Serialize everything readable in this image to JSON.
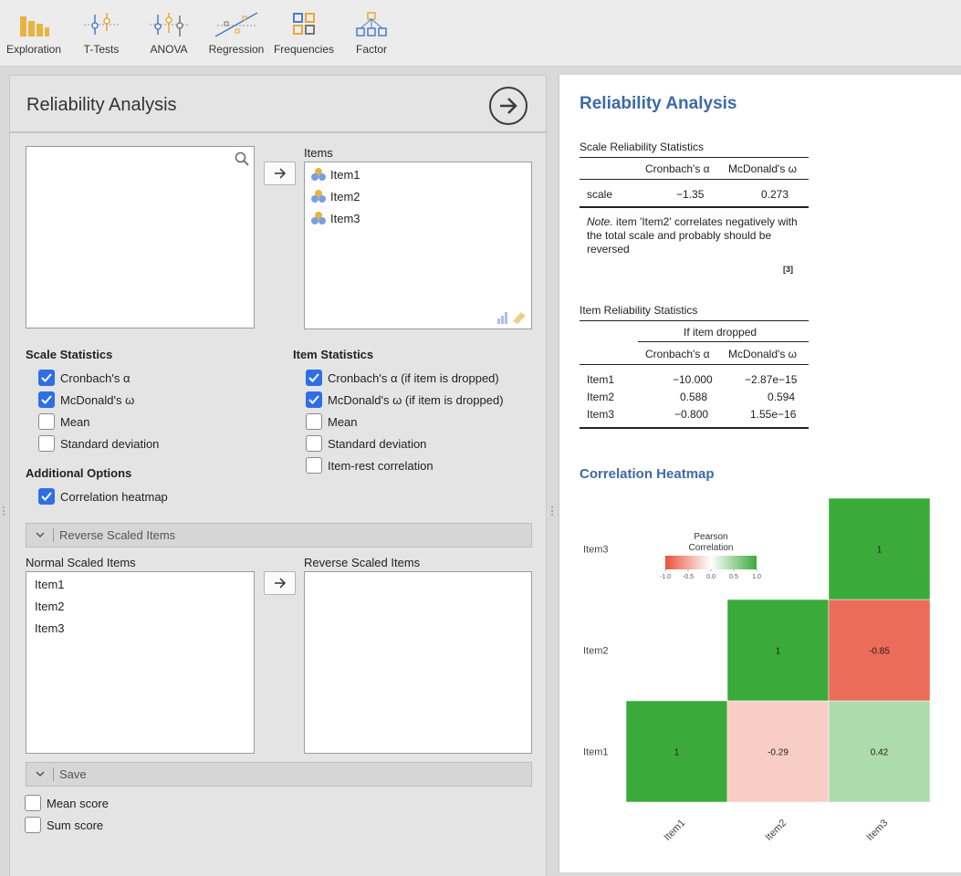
{
  "toolbar": {
    "tools": [
      {
        "label": "Exploration",
        "icon": "exploration-icon"
      },
      {
        "label": "T-Tests",
        "icon": "t-tests-icon"
      },
      {
        "label": "ANOVA",
        "icon": "anova-icon"
      },
      {
        "label": "Regression",
        "icon": "regression-icon"
      },
      {
        "label": "Frequencies",
        "icon": "frequencies-icon"
      },
      {
        "label": "Factor",
        "icon": "factor-icon"
      }
    ]
  },
  "options": {
    "title": "Reliability Analysis",
    "items_label": "Items",
    "items": [
      "Item1",
      "Item2",
      "Item3"
    ],
    "scale_statistics": {
      "heading": "Scale Statistics",
      "checks": [
        {
          "label": "Cronbach's α",
          "checked": true
        },
        {
          "label": "McDonald's ω",
          "checked": true
        },
        {
          "label": "Mean",
          "checked": false
        },
        {
          "label": "Standard deviation",
          "checked": false
        }
      ]
    },
    "item_statistics": {
      "heading": "Item Statistics",
      "checks": [
        {
          "label": "Cronbach's α (if item is dropped)",
          "checked": true
        },
        {
          "label": "McDonald's ω (if item is dropped)",
          "checked": true
        },
        {
          "label": "Mean",
          "checked": false
        },
        {
          "label": "Standard deviation",
          "checked": false
        },
        {
          "label": "Item-rest correlation",
          "checked": false
        }
      ]
    },
    "additional": {
      "heading": "Additional Options",
      "checks": [
        {
          "label": "Correlation heatmap",
          "checked": true
        }
      ]
    },
    "reverse_section": "Reverse Scaled Items",
    "normal_label": "Normal Scaled Items",
    "reverse_label": "Reverse Scaled Items",
    "normal_items": [
      "Item1",
      "Item2",
      "Item3"
    ],
    "save_section": "Save",
    "save_checks": [
      {
        "label": "Mean score",
        "checked": false
      },
      {
        "label": "Sum score",
        "checked": false
      }
    ]
  },
  "results": {
    "title": "Reliability Analysis",
    "scale_table": {
      "title": "Scale Reliability Statistics",
      "headers": [
        "Cronbach's α",
        "McDonald's ω"
      ],
      "row_label": "scale",
      "values": [
        "−1.35",
        "0.273"
      ],
      "note_prefix": "Note.",
      "note_text": " item 'Item2' correlates negatively with the total scale and probably should be reversed",
      "footnote": "[3]"
    },
    "item_table": {
      "title": "Item Reliability Statistics",
      "span_header": "If item dropped",
      "headers": [
        "Cronbach's α",
        "McDonald's ω"
      ],
      "rows": [
        {
          "label": "Item1",
          "alpha": "−10.000",
          "omega": "−2.87e−15"
        },
        {
          "label": "Item2",
          "alpha": "0.588",
          "omega": "0.594"
        },
        {
          "label": "Item3",
          "alpha": "−0.800",
          "omega": "1.55e−16"
        }
      ]
    },
    "heatmap_title": "Correlation Heatmap"
  },
  "chart_data": {
    "type": "heatmap",
    "x_categories": [
      "Item1",
      "Item2",
      "Item3"
    ],
    "y_categories": [
      "Item1",
      "Item2",
      "Item3"
    ],
    "cells": [
      {
        "x": "Item1",
        "y": "Item1",
        "value": 1,
        "label": "1"
      },
      {
        "x": "Item2",
        "y": "Item1",
        "value": -0.29,
        "label": "-0.29"
      },
      {
        "x": "Item3",
        "y": "Item1",
        "value": 0.42,
        "label": "0.42"
      },
      {
        "x": "Item2",
        "y": "Item2",
        "value": 1,
        "label": "1"
      },
      {
        "x": "Item3",
        "y": "Item2",
        "value": -0.85,
        "label": "-0.85"
      },
      {
        "x": "Item3",
        "y": "Item3",
        "value": 1,
        "label": "1"
      }
    ],
    "legend": {
      "title_lines": [
        "Pearson",
        "Correlation"
      ],
      "ticks": [
        "-1.0",
        "-0.5",
        "0.0",
        "0.5",
        "1.0"
      ],
      "placement": "top-left"
    },
    "colors": {
      "negative": "#e8523a",
      "mid": "#ffffff",
      "positive": "#3aab3a"
    }
  }
}
